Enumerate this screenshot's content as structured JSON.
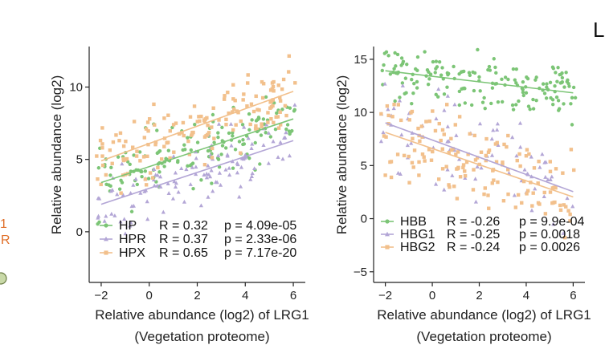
{
  "fragments": {
    "left_top": "1",
    "left_bottom": "R",
    "corner_letter": "L"
  },
  "chart_data": [
    {
      "type": "scatter",
      "xlabel": "Relative abundance (log2) of LRG1",
      "xlabel_sub": "(Vegetation proteome)",
      "ylabel": "Relative abundance (log2)",
      "xlim": [
        -2.5,
        6.5
      ],
      "ylim": [
        -3.5,
        12.8
      ],
      "xticks": [
        -2,
        0,
        2,
        4,
        6
      ],
      "yticks": [
        0,
        5,
        10
      ],
      "series": [
        {
          "name": "HP",
          "color": "#7cc576",
          "marker": "circle",
          "r_label": "R = 0.32",
          "p_label": "p = 4.09e-05",
          "fit": {
            "slope": 0.55,
            "intercept": 4.5
          },
          "n": 150,
          "seed": 11
        },
        {
          "name": "HPR",
          "color": "#b3a6d6",
          "marker": "triangle",
          "r_label": "R = 0.37",
          "p_label": "p = 2.33e-06",
          "fit": {
            "slope": 0.55,
            "intercept": 3.0
          },
          "n": 120,
          "seed": 23
        },
        {
          "name": "HPX",
          "color": "#f2c08c",
          "marker": "square",
          "r_label": "R = 0.65",
          "p_label": "p = 7.17e-20",
          "fit": {
            "slope": 0.6,
            "intercept": 6.1
          },
          "n": 160,
          "seed": 37
        }
      ]
    },
    {
      "type": "scatter",
      "xlabel": "Relative abundance (log2) of LRG1",
      "xlabel_sub": "(Vegetation proteome)",
      "ylabel": "Relative abundance (log2)",
      "xlim": [
        -2.5,
        6.5
      ],
      "ylim": [
        -6,
        16.2
      ],
      "xticks": [
        -2,
        0,
        2,
        4,
        6
      ],
      "yticks": [
        -5,
        0,
        5,
        10,
        15
      ],
      "series": [
        {
          "name": "HBB",
          "color": "#7cc576",
          "marker": "circle",
          "r_label": "R = -0.26",
          "p_label": "p = 9.9e-04",
          "fit": {
            "slope": -0.26,
            "intercept": 13.4
          },
          "n": 170,
          "seed": 51
        },
        {
          "name": "HBG1",
          "color": "#b3a6d6",
          "marker": "triangle",
          "r_label": "R = -0.25",
          "p_label": "p = 0.0018",
          "fit": {
            "slope": -0.81,
            "intercept": 7.4
          },
          "n": 80,
          "seed": 63
        },
        {
          "name": "HBG2",
          "color": "#f2c08c",
          "marker": "square",
          "r_label": "R = -0.24",
          "p_label": "p = 0.0026",
          "fit": {
            "slope": -0.76,
            "intercept": 6.6
          },
          "n": 150,
          "seed": 79
        }
      ]
    }
  ]
}
